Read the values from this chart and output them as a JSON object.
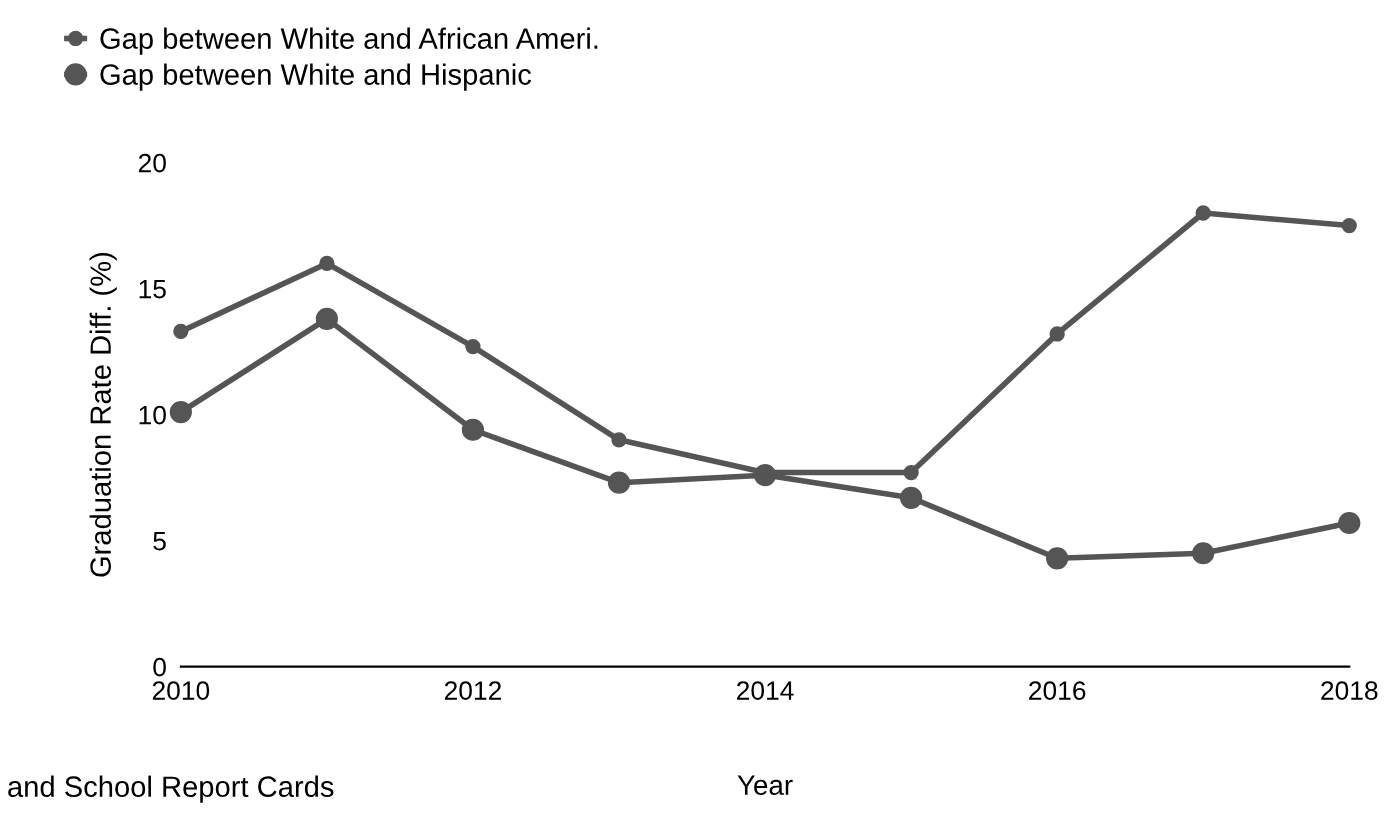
{
  "chart_data": {
    "type": "line",
    "xlabel": "Year",
    "ylabel": "Graduation Rate Diff. (%)",
    "x": [
      2010,
      2011,
      2012,
      2013,
      2014,
      2015,
      2016,
      2017,
      2018
    ],
    "series": [
      {
        "name": "Gap between White and African Ameri.",
        "color": "#555555",
        "values": [
          13.3,
          16.0,
          12.7,
          9.0,
          7.7,
          7.7,
          13.2,
          18.0,
          17.5
        ]
      },
      {
        "name": "Gap between White and Hispanic",
        "color": "#555555",
        "values": [
          10.1,
          13.8,
          9.4,
          7.3,
          7.6,
          6.7,
          4.3,
          4.5,
          5.7
        ]
      }
    ],
    "xlim": [
      2010,
      2018
    ],
    "xticks": [
      2010,
      2012,
      2014,
      2016,
      2018
    ],
    "ylim": [
      0,
      20
    ],
    "yticks": [
      0,
      5,
      10,
      15,
      20
    ],
    "grid": false,
    "legend": "top left",
    "marker": "circle",
    "line_style": "solid",
    "annotations": [
      "and School Report Cards"
    ]
  }
}
